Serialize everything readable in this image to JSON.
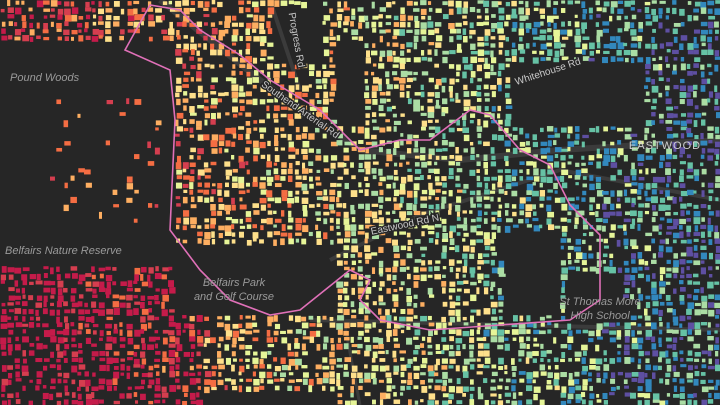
{
  "labels": [
    {
      "text": "Pound Woods"
    },
    {
      "text": "Belfairs Nature Reserve"
    },
    {
      "text": "Belfairs Park"
    },
    {
      "text": "and Golf Course"
    },
    {
      "text": "Progress Rd"
    },
    {
      "text": "Southend Arterial Rd"
    },
    {
      "text": "Whitehouse Rd"
    },
    {
      "text": "Eastwood Rd N"
    },
    {
      "text": "EASTWOOD"
    },
    {
      "text": "St Thomas More"
    },
    {
      "text": "High School"
    }
  ]
}
